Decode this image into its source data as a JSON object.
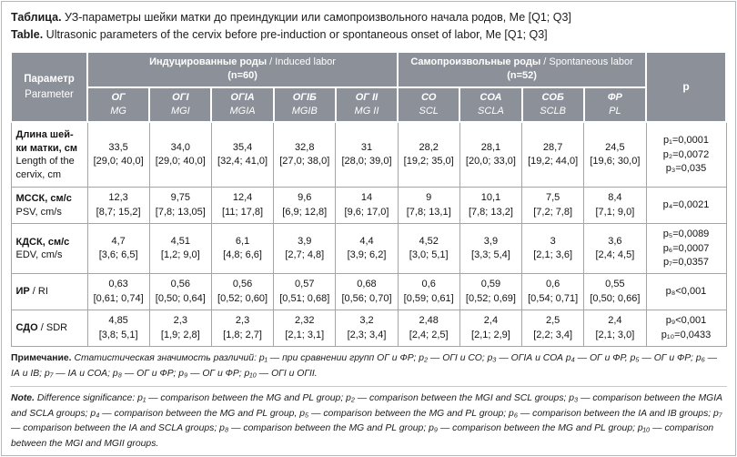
{
  "card": {
    "title_ru_bold": "Таблица.",
    "title_ru": " УЗ-параметры шейки матки до преиндукции или самопроизвольного начала родов, Ме [Q1; Q3]",
    "title_en_bold": "Table.",
    "title_en": " Ultrasonic parameters of the cervix before pre-induction or spontaneous onset of labor, Me [Q1; Q3]"
  },
  "table": {
    "param_header": {
      "ru": "Параметр",
      "en": "Parameter"
    },
    "p_header": "p",
    "groups": [
      {
        "ru": "Индуцированные роды",
        "en": " / Induced labor",
        "n": "(n=60)"
      },
      {
        "ru": "Самопроизвольные роды",
        "en": " / Spontaneous labor",
        "n": "(n=52)"
      }
    ],
    "subheaders": [
      {
        "ru": "ОГ",
        "en": "MG"
      },
      {
        "ru": "ОГI",
        "en": "MGI"
      },
      {
        "ru": "ОГIА",
        "en": "MGIA"
      },
      {
        "ru": "ОГIБ",
        "en": "MGIB"
      },
      {
        "ru": "ОГ II",
        "en": "MG II"
      },
      {
        "ru": "СО",
        "en": "SCL"
      },
      {
        "ru": "СОА",
        "en": "SCLA"
      },
      {
        "ru": "СОБ",
        "en": "SCLB"
      },
      {
        "ru": "ФР",
        "en": "PL"
      }
    ],
    "rows": [
      {
        "param_ru": "Длина шей-ки матки, см",
        "param_en": "Length of the cervix, cm",
        "inline": false,
        "cells": [
          [
            "33,5",
            "[29,0; 40,0]"
          ],
          [
            "34,0",
            "[29,0; 40,0]"
          ],
          [
            "35,4",
            "[32,4; 41,0]"
          ],
          [
            "32,8",
            "[27,0; 38,0]"
          ],
          [
            "31",
            "[28,0; 39,0]"
          ],
          [
            "28,2",
            "[19,2; 35,0]"
          ],
          [
            "28,1",
            "[20,0; 33,0]"
          ],
          [
            "28,7",
            "[19,2; 44,0]"
          ],
          [
            "24,5",
            "[19,6; 30,0]"
          ]
        ],
        "p": [
          "p₁=0,0001",
          "p₂=0,0072",
          "p₃=0,035"
        ]
      },
      {
        "param_ru": "МССК, см/с",
        "param_en": "PSV, cm/s",
        "inline": false,
        "cells": [
          [
            "12,3",
            "[8,7; 15,2]"
          ],
          [
            "9,75",
            "[7,8; 13,05]"
          ],
          [
            "12,4",
            "[11; 17,8]"
          ],
          [
            "9,6",
            "[6,9; 12,8]"
          ],
          [
            "14",
            "[9,6; 17,0]"
          ],
          [
            "9",
            "[7,8; 13,1]"
          ],
          [
            "10,1",
            "[7,8; 13,2]"
          ],
          [
            "7,5",
            "[7,2; 7,8]"
          ],
          [
            "8,4",
            "[7,1; 9,0]"
          ]
        ],
        "p": [
          "p₄=0,0021"
        ]
      },
      {
        "param_ru": "КДСК, см/с",
        "param_en": "EDV, cm/s",
        "inline": false,
        "cells": [
          [
            "4,7",
            "[3,6; 6,5]"
          ],
          [
            "4,51",
            "[1,2; 9,0]"
          ],
          [
            "6,1",
            "[4,8; 6,6]"
          ],
          [
            "3,9",
            "[2,7; 4,8]"
          ],
          [
            "4,4",
            "[3,9; 6,2]"
          ],
          [
            "4,52",
            "[3,0; 5,1]"
          ],
          [
            "3,9",
            "[3,3; 5,4]"
          ],
          [
            "3",
            "[2,1; 3,6]"
          ],
          [
            "3,6",
            "[2,4; 4,5]"
          ]
        ],
        "p": [
          "p₅=0,0089",
          "p₆=0,0007",
          "p₇=0,0357"
        ]
      },
      {
        "param_ru": "ИР",
        "param_en": " / RI",
        "inline": true,
        "cells": [
          [
            "0,63",
            "[0,61; 0,74]"
          ],
          [
            "0,56",
            "[0,50; 0,64]"
          ],
          [
            "0,56",
            "[0,52; 0,60]"
          ],
          [
            "0,57",
            "[0,51; 0,68]"
          ],
          [
            "0,68",
            "[0,56; 0,70]"
          ],
          [
            "0,6",
            "[0,59; 0,61]"
          ],
          [
            "0,59",
            "[0,52; 0,69]"
          ],
          [
            "0,6",
            "[0,54; 0,71]"
          ],
          [
            "0,55",
            "[0,50; 0,66]"
          ]
        ],
        "p": [
          "p₈<0,001"
        ]
      },
      {
        "param_ru": "СДО",
        "param_en": " / SDR",
        "inline": true,
        "cells": [
          [
            "4,85",
            "[3,8; 5,1]"
          ],
          [
            "2,3",
            "[1,9; 2,8]"
          ],
          [
            "2,3",
            "[1,8; 2,7]"
          ],
          [
            "2,32",
            "[2,1; 3,1]"
          ],
          [
            "3,2",
            "[2,3; 3,4]"
          ],
          [
            "2,48",
            "[2,4; 2,5]"
          ],
          [
            "2,4",
            "[2,1; 2,9]"
          ],
          [
            "2,5",
            "[2,2; 3,4]"
          ],
          [
            "2,4",
            "[2,1; 3,0]"
          ]
        ],
        "p": [
          "p₉<0,001",
          "p₁₀=0,0433"
        ]
      }
    ]
  },
  "notes": {
    "ru_label": "Примечание.",
    "ru_text": " Статистическая значимость различий: p₁ — при сравнении групп ОГ и ФР; p₂ — ОГI и СО; p₃ — ОГIА и СОА p₄ — ОГ и ФР, p₅ — ОГ и ФР; p₆ — IА и IВ; p₇ — IА и СОА; p₈ — ОГ и ФР; p₉ — ОГ и ФР; p₁₀ — ОГI и ОГII.",
    "en_label": "Note.",
    "en_text": " Difference significance: p₁ — comparison between the MG and PL group; p₂ — comparison between the MGI and SCL groups; p₃ — comparison between the MGIA and SCLA groups; p₄ — comparison between the MG and PL group, p₅ — comparison between the MG and PL group; p₆ — comparison between the IA and IB groups; p₇ — comparison between the IA and SCLA groups; p₈ — comparison between the MG and PL group; p₉ — comparison between the MG and PL group; p₁₀ — comparison between the MGI and MGII groups."
  },
  "colors": {
    "header_bg": "#8b9099",
    "header_text": "#ffffff",
    "body_border": "#a5a5a5",
    "card_border": "#b2b8be"
  }
}
